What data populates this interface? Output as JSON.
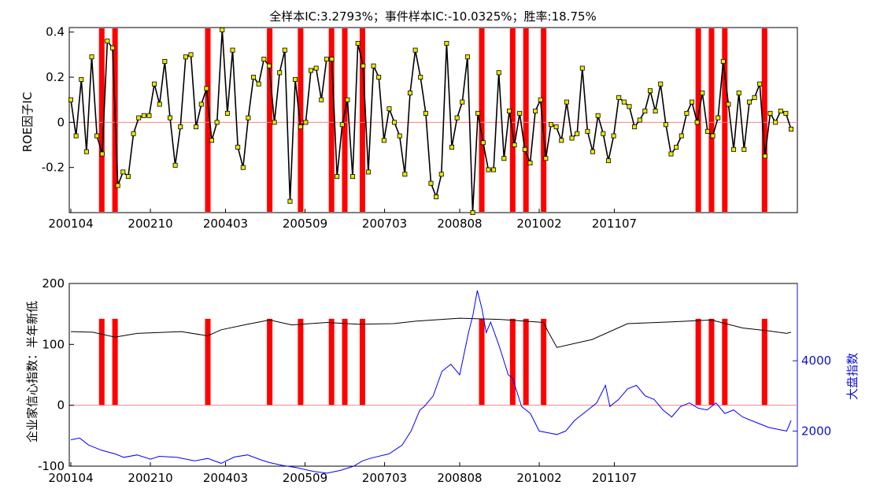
{
  "chart_data": [
    {
      "type": "line",
      "title": "全样本IC:3.2793%；事件样本IC:-10.0325%；胜率:18.75%",
      "ylabel": "ROE因子IC",
      "xlabel": "",
      "ylim": [
        -0.4,
        0.42
      ],
      "yticks": [
        "0.4",
        "0.2",
        "0",
        "-0.2"
      ],
      "xticks": [
        "200104",
        "200210",
        "200403",
        "200509",
        "200703",
        "200808",
        "201002",
        "201107"
      ],
      "zero_line_color": "#ff8080",
      "line_color": "#000000",
      "marker_color": "#e8e800",
      "event_bar_color": "#ff0000",
      "event_indices": [
        7,
        10,
        31,
        45,
        52,
        59,
        62,
        66,
        93,
        100,
        103,
        107,
        142,
        145,
        148,
        157
      ],
      "series": [
        {
          "values": [
            0.1,
            -0.06,
            0.19,
            -0.13,
            0.29,
            -0.06,
            -0.14,
            0.36,
            0.33,
            -0.28,
            -0.22,
            -0.24,
            -0.05,
            0.02,
            0.03,
            0.03,
            0.17,
            0.08,
            0.27,
            0.02,
            -0.19,
            -0.02,
            0.29,
            0.3,
            -0.02,
            0.08,
            0.15,
            -0.08,
            0.0,
            0.41,
            0.04,
            0.32,
            -0.11,
            -0.2,
            0.02,
            0.2,
            0.17,
            0.28,
            0.25,
            0.0,
            0.22,
            0.32,
            -0.35,
            0.19,
            -0.02,
            0.0,
            0.23,
            0.24,
            0.1,
            0.28,
            0.28,
            -0.24,
            -0.01,
            0.1,
            -0.24,
            0.35,
            0.25,
            -0.22,
            0.25,
            0.2,
            -0.08,
            0.06,
            0.0,
            -0.06,
            -0.23,
            0.13,
            0.32,
            0.2,
            0.04,
            -0.27,
            -0.33,
            -0.23,
            0.35,
            -0.11,
            0.02,
            0.09,
            0.29,
            -0.4,
            0.04,
            -0.09,
            -0.21,
            -0.21,
            0.22,
            -0.16,
            0.05,
            -0.1,
            0.04,
            -0.12,
            -0.18,
            0.05,
            0.1,
            -0.16,
            -0.01,
            -0.02,
            -0.08,
            0.09,
            -0.07,
            -0.05,
            0.24,
            -0.04,
            -0.13,
            0.03,
            -0.05,
            -0.17,
            -0.06,
            0.11,
            0.09,
            0.07,
            -0.02,
            0.01,
            0.05,
            0.14,
            0.05,
            0.17,
            -0.01,
            -0.14,
            -0.11,
            -0.06,
            0.04,
            0.09,
            0.0,
            0.13,
            -0.04,
            -0.06,
            0.02,
            0.27,
            0.08,
            -0.12,
            0.13,
            -0.12,
            0.09,
            0.11,
            0.17,
            -0.15,
            0.04,
            0.0,
            0.05,
            0.04,
            -0.03
          ]
        }
      ]
    },
    {
      "type": "line",
      "title": "",
      "ylabel": "企业家信心指数：半年新低",
      "ylabel_right": "大盘指数",
      "ylim": [
        -100,
        200
      ],
      "ylim_right": [
        1000,
        6200
      ],
      "yticks": [
        "200",
        "100",
        "0",
        "-100"
      ],
      "yticks_right": [
        "4000",
        "2000"
      ],
      "xticks": [
        "200104",
        "200210",
        "200403",
        "200509",
        "200703",
        "200808",
        "201002",
        "201107"
      ],
      "zero_line_color": "#ff8080",
      "event_bar_color": "#ff0000",
      "event_bar_height": 142,
      "event_indices": [
        7,
        10,
        31,
        45,
        52,
        59,
        62,
        66,
        93,
        100,
        103,
        107,
        142,
        145,
        148,
        157
      ],
      "series": [
        {
          "axis": "left",
          "color": "#000000",
          "points": [
            [
              0,
              121
            ],
            [
              5,
              120
            ],
            [
              10,
              112
            ],
            [
              15,
              118
            ],
            [
              25,
              121
            ],
            [
              31,
              114
            ],
            [
              34,
              124
            ],
            [
              40,
              133
            ],
            [
              45,
              140
            ],
            [
              50,
              132
            ],
            [
              58,
              136
            ],
            [
              65,
              133
            ],
            [
              73,
              134
            ],
            [
              78,
              138
            ],
            [
              88,
              143
            ],
            [
              97,
              141
            ],
            [
              107,
              136
            ],
            [
              108,
              121
            ],
            [
              110,
              95
            ],
            [
              118,
              108
            ],
            [
              126,
              134
            ],
            [
              136,
              137
            ],
            [
              145,
              140
            ],
            [
              152,
              127
            ],
            [
              158,
              122
            ],
            [
              162,
              118
            ],
            [
              163,
              120
            ]
          ]
        },
        {
          "axis": "right",
          "color": "#0000ff",
          "points": [
            [
              0,
              1750
            ],
            [
              2,
              1800
            ],
            [
              4,
              1600
            ],
            [
              7,
              1450
            ],
            [
              10,
              1350
            ],
            [
              12,
              1250
            ],
            [
              15,
              1320
            ],
            [
              18,
              1200
            ],
            [
              20,
              1280
            ],
            [
              24,
              1250
            ],
            [
              28,
              1150
            ],
            [
              31,
              1220
            ],
            [
              34,
              1080
            ],
            [
              37,
              1260
            ],
            [
              40,
              1320
            ],
            [
              43,
              1180
            ],
            [
              45,
              1100
            ],
            [
              48,
              1020
            ],
            [
              51,
              960
            ],
            [
              55,
              850
            ],
            [
              58,
              800
            ],
            [
              61,
              880
            ],
            [
              64,
              1000
            ],
            [
              66,
              1150
            ],
            [
              68,
              1230
            ],
            [
              72,
              1350
            ],
            [
              75,
              1600
            ],
            [
              77,
              2000
            ],
            [
              79,
              2600
            ],
            [
              80,
              2700
            ],
            [
              82,
              3000
            ],
            [
              84,
              3700
            ],
            [
              86,
              3900
            ],
            [
              88,
              3600
            ],
            [
              90,
              4800
            ],
            [
              91,
              5300
            ],
            [
              92,
              6000
            ],
            [
              93,
              5500
            ],
            [
              94,
              4800
            ],
            [
              95,
              5100
            ],
            [
              97,
              4400
            ],
            [
              99,
              3600
            ],
            [
              100,
              3500
            ],
            [
              102,
              2700
            ],
            [
              104,
              2500
            ],
            [
              106,
              2000
            ],
            [
              108,
              1950
            ],
            [
              110,
              1900
            ],
            [
              112,
              2000
            ],
            [
              114,
              2300
            ],
            [
              117,
              2600
            ],
            [
              119,
              2800
            ],
            [
              121,
              3300
            ],
            [
              122,
              2700
            ],
            [
              124,
              2900
            ],
            [
              126,
              3200
            ],
            [
              128,
              3300
            ],
            [
              130,
              3000
            ],
            [
              132,
              2900
            ],
            [
              134,
              2600
            ],
            [
              136,
              2400
            ],
            [
              138,
              2700
            ],
            [
              140,
              2800
            ],
            [
              142,
              2650
            ],
            [
              144,
              2600
            ],
            [
              146,
              2800
            ],
            [
              148,
              2500
            ],
            [
              150,
              2600
            ],
            [
              152,
              2400
            ],
            [
              154,
              2300
            ],
            [
              156,
              2200
            ],
            [
              158,
              2100
            ],
            [
              160,
              2050
            ],
            [
              162,
              2000
            ],
            [
              163,
              2300
            ]
          ]
        }
      ]
    }
  ]
}
